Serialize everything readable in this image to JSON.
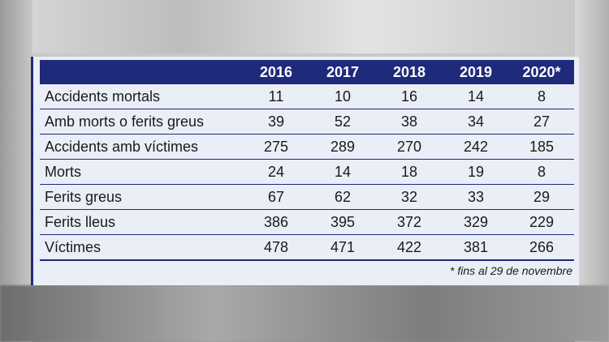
{
  "table": {
    "headers": [
      "",
      "2016",
      "2017",
      "2018",
      "2019",
      "2020*"
    ],
    "rows": [
      {
        "label": "Accidents mortals",
        "values": [
          "11",
          "10",
          "16",
          "14",
          "8"
        ]
      },
      {
        "label": "Amb morts o ferits greus",
        "values": [
          "39",
          "52",
          "38",
          "34",
          "27"
        ]
      },
      {
        "label": "Accidents amb víctimes",
        "values": [
          "275",
          "289",
          "270",
          "242",
          "185"
        ]
      },
      {
        "label": "Morts",
        "values": [
          "24",
          "14",
          "18",
          "19",
          "8"
        ]
      },
      {
        "label": "Ferits greus",
        "values": [
          "67",
          "62",
          "32",
          "33",
          "29"
        ]
      },
      {
        "label": "Ferits lleus",
        "values": [
          "386",
          "395",
          "372",
          "329",
          "229"
        ]
      },
      {
        "label": "Víctimes",
        "values": [
          "478",
          "471",
          "422",
          "381",
          "266"
        ]
      }
    ]
  },
  "footnote": "* fins al 29 de novembre",
  "colors": {
    "header_bg": "#1f2a7a",
    "card_bg": "#eaeef6",
    "rule": "#1f2a7a"
  }
}
